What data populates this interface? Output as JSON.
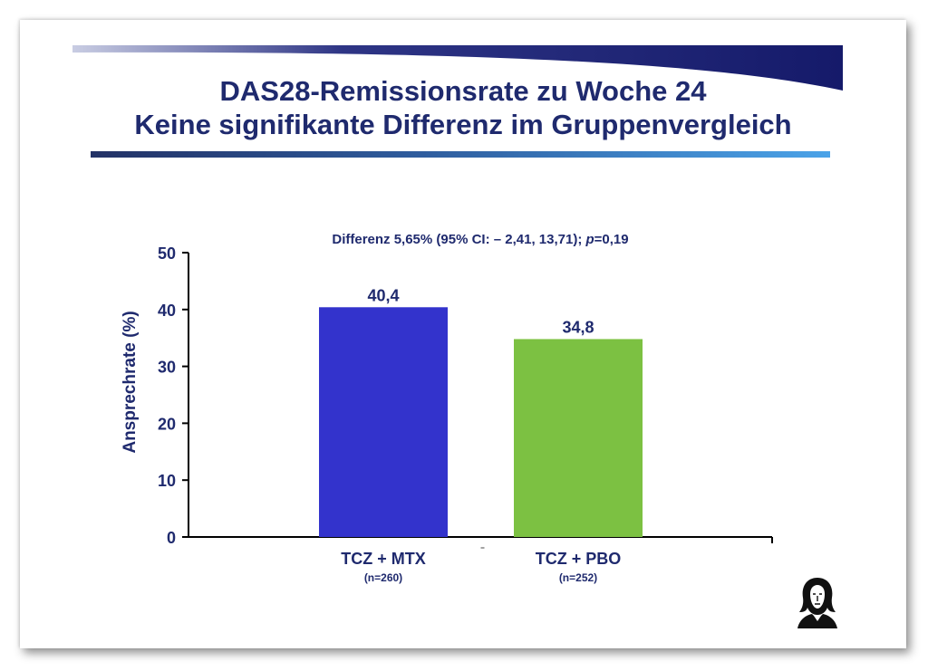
{
  "slide": {
    "title_line1": "DAS28-Remissionsrate zu Woche 24",
    "title_line2": "Keine signifikante Differenz im Gruppenvergleich",
    "subtitle_prefix": "Differenz 5,65%  (95% CI: – 2,41, 13,71);  ",
    "subtitle_p": "p",
    "subtitle_suffix": "=0,19",
    "title_color": "#1f2a6e"
  },
  "chart_data": {
    "type": "bar",
    "categories": [
      "TCZ + MTX",
      "TCZ + PBO"
    ],
    "category_sublabels": [
      "(n=260)",
      "(n=252)"
    ],
    "values": [
      40.4,
      34.8
    ],
    "value_labels": [
      "40,4",
      "34,8"
    ],
    "colors": [
      "#3333cc",
      "#7cc142"
    ],
    "ylabel": "Ansprechrate (%)",
    "ylim": [
      0,
      50
    ],
    "yticks": [
      0,
      10,
      20,
      30,
      40,
      50
    ],
    "grid": false,
    "legend": "none"
  }
}
